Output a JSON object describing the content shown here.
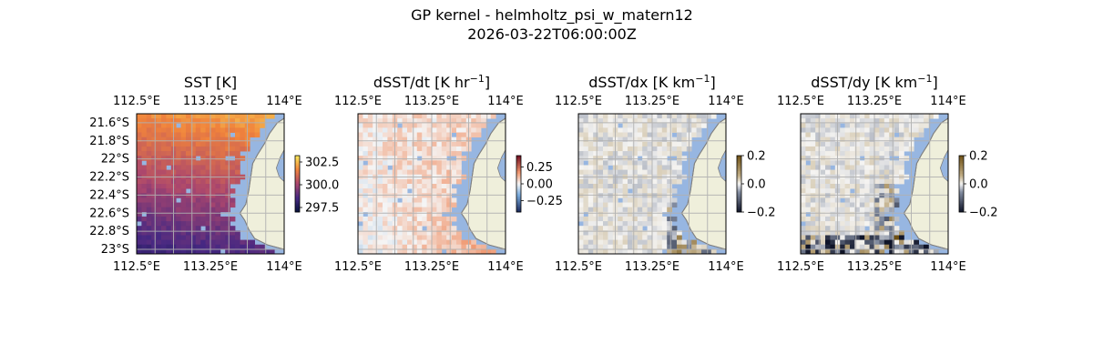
{
  "figure": {
    "title": "GP kernel - helmholtz_psi_w_matern12",
    "subtitle": "2026-03-22T06:00:00Z"
  },
  "colors": {
    "land": "#efefdb",
    "coast": "#808080",
    "water_mask": "#97b6e1",
    "grid": "#b0b0b0"
  },
  "chart_data": [
    {
      "type": "heatmap",
      "title": "SST [K]",
      "title_unit_exponent": "",
      "x_ticks": [
        "112.5°E",
        "113.25°E",
        "114°E"
      ],
      "x_tick_values": [
        112.5,
        113.25,
        114.0
      ],
      "y_ticks": [
        "21.6°S",
        "21.8°S",
        "22°S",
        "22.2°S",
        "22.4°S",
        "22.6°S",
        "22.8°S",
        "23°S"
      ],
      "y_tick_values": [
        -21.6,
        -21.8,
        -22.0,
        -22.2,
        -22.4,
        -22.6,
        -22.8,
        -23.0
      ],
      "xlim": [
        112.5,
        114.0
      ],
      "ylim": [
        -23.05,
        -21.5
      ],
      "colormap": "thermal",
      "grid": true,
      "colorbar": {
        "ticks": [
          "302.5",
          "300.0",
          "297.5"
        ],
        "values": [
          302.5,
          300.0,
          297.5
        ],
        "range": [
          297.0,
          303.2
        ]
      }
    },
    {
      "type": "heatmap",
      "title": "dSST/dt [K hr",
      "title_unit_exponent": "−1",
      "title_tail": "]",
      "x_ticks": [
        "112.5°E",
        "113.25°E",
        "114°E"
      ],
      "x_tick_values": [
        112.5,
        113.25,
        114.0
      ],
      "y_ticks": [],
      "xlim": [
        112.5,
        114.0
      ],
      "ylim": [
        -23.05,
        -21.5
      ],
      "colormap": "balance",
      "grid": true,
      "colorbar": {
        "ticks": [
          "0.25",
          "0.00",
          "−0.25"
        ],
        "values": [
          0.25,
          0.0,
          -0.25
        ],
        "range": [
          -0.42,
          0.42
        ]
      }
    },
    {
      "type": "heatmap",
      "title": "dSST/dx [K km",
      "title_unit_exponent": "−1",
      "title_tail": "]",
      "x_ticks": [
        "112.5°E",
        "113.25°E",
        "114°E"
      ],
      "x_tick_values": [
        112.5,
        113.25,
        114.0
      ],
      "y_ticks": [],
      "xlim": [
        112.5,
        114.0
      ],
      "ylim": [
        -23.05,
        -21.5
      ],
      "colormap": "diff",
      "grid": true,
      "colorbar": {
        "ticks": [
          "0.2",
          "0.0",
          "−0.2"
        ],
        "values": [
          0.2,
          0.0,
          -0.2
        ],
        "range": [
          -0.2,
          0.2
        ]
      }
    },
    {
      "type": "heatmap",
      "title": "dSST/dy [K km",
      "title_unit_exponent": "−1",
      "title_tail": "]",
      "x_ticks": [
        "112.5°E",
        "113.25°E",
        "114°E"
      ],
      "x_tick_values": [
        112.5,
        113.25,
        114.0
      ],
      "y_ticks": [],
      "xlim": [
        112.5,
        114.0
      ],
      "ylim": [
        -23.05,
        -21.5
      ],
      "colormap": "diff",
      "grid": true,
      "colorbar": {
        "ticks": [
          "0.2",
          "0.0",
          "−0.2"
        ],
        "values": [
          0.2,
          0.0,
          -0.2
        ],
        "range": [
          -0.2,
          0.2
        ]
      }
    }
  ]
}
